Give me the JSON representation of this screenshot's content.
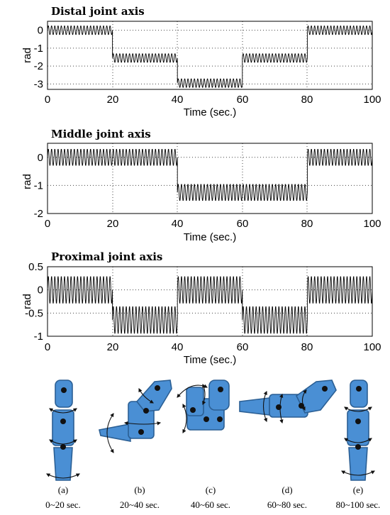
{
  "chart_data": [
    {
      "type": "line",
      "title": "Distal joint axis",
      "xlabel": "Time (sec.)",
      "ylabel": "rad",
      "xlim": [
        0,
        100
      ],
      "ylim": [
        -3.3,
        0.5
      ],
      "xticks": [
        "0",
        "20",
        "40",
        "60",
        "80",
        "100"
      ],
      "yticks": [
        "0",
        "-1",
        "-2",
        "-3"
      ],
      "ytick_values": [
        0,
        -1,
        -2,
        -3
      ],
      "grid": true,
      "oscillation": {
        "period_sec": 1.0,
        "amplitude": 0.25
      },
      "segments": [
        {
          "t_start": 0,
          "t_end": 20,
          "mean": 0.0
        },
        {
          "t_start": 20,
          "t_end": 40,
          "mean": -1.55
        },
        {
          "t_start": 40,
          "t_end": 60,
          "mean": -2.95
        },
        {
          "t_start": 60,
          "t_end": 80,
          "mean": -1.55
        },
        {
          "t_start": 80,
          "t_end": 100,
          "mean": 0.0
        }
      ]
    },
    {
      "type": "line",
      "title": "Middle joint axis",
      "xlabel": "Time (sec.)",
      "ylabel": "rad",
      "xlim": [
        0,
        100
      ],
      "ylim": [
        -2,
        0.5
      ],
      "xticks": [
        "0",
        "20",
        "40",
        "60",
        "80",
        "100"
      ],
      "yticks": [
        "0",
        "-1",
        "-2"
      ],
      "ytick_values": [
        0,
        -1,
        -2
      ],
      "grid": true,
      "oscillation": {
        "period_sec": 1.0,
        "amplitude": 0.3
      },
      "segments": [
        {
          "t_start": 0,
          "t_end": 40,
          "mean": 0.0
        },
        {
          "t_start": 40,
          "t_end": 80,
          "mean": -1.25
        },
        {
          "t_start": 80,
          "t_end": 100,
          "mean": 0.0
        }
      ]
    },
    {
      "type": "line",
      "title": "Proximal joint axis",
      "xlabel": "Time (sec.)",
      "ylabel": "rad",
      "xlim": [
        0,
        100
      ],
      "ylim": [
        -1,
        0.5
      ],
      "xticks": [
        "0",
        "20",
        "40",
        "60",
        "80",
        "100"
      ],
      "yticks": [
        "0.5",
        "0",
        "-0.5",
        "-1"
      ],
      "ytick_values": [
        0.5,
        0,
        -0.5,
        -1
      ],
      "grid": true,
      "oscillation": {
        "period_sec": 1.0,
        "amplitude": 0.3
      },
      "segments": [
        {
          "t_start": 0,
          "t_end": 20,
          "mean": 0.0
        },
        {
          "t_start": 20,
          "t_end": 40,
          "mean": -0.65
        },
        {
          "t_start": 40,
          "t_end": 60,
          "mean": 0.0
        },
        {
          "t_start": 60,
          "t_end": 80,
          "mean": -0.65
        },
        {
          "t_start": 80,
          "t_end": 100,
          "mean": 0.0
        }
      ]
    }
  ],
  "finger_poses": [
    {
      "letter": "(a)",
      "time": "0~20 sec."
    },
    {
      "letter": "(b)",
      "time": "20~40 sec."
    },
    {
      "letter": "(c)",
      "time": "40~60 sec."
    },
    {
      "letter": "(d)",
      "time": "60~80 sec."
    },
    {
      "letter": "(e)",
      "time": "80~100 sec."
    }
  ],
  "colors": {
    "segment_fill": "#4a8fd4",
    "segment_edge": "#2b5f94",
    "joint": "#111111",
    "trace": "#000000"
  }
}
